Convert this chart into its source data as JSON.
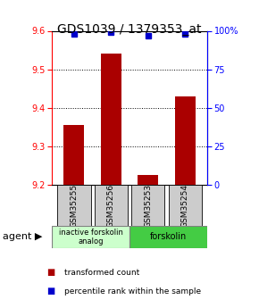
{
  "title": "GDS1039 / 1379353_at",
  "samples": [
    "GSM35255",
    "GSM35256",
    "GSM35253",
    "GSM35254"
  ],
  "bar_values": [
    9.355,
    9.54,
    9.225,
    9.43
  ],
  "percentile_values": [
    98,
    99,
    97,
    98
  ],
  "ylim_left": [
    9.2,
    9.6
  ],
  "ylim_right": [
    0,
    100
  ],
  "yticks_left": [
    9.2,
    9.3,
    9.4,
    9.5,
    9.6
  ],
  "yticks_right": [
    0,
    25,
    50,
    75,
    100
  ],
  "ytick_right_labels": [
    "0",
    "25",
    "50",
    "75",
    "100%"
  ],
  "bar_color": "#aa0000",
  "percentile_color": "#0000cc",
  "bar_bottom": 9.2,
  "group1_color": "#ccffcc",
  "group2_color": "#44cc44",
  "group1_label": "inactive forskolin\nanalog",
  "group2_label": "forskolin",
  "legend_bar_label": "transformed count",
  "legend_pct_label": "percentile rank within the sample",
  "agent_label": "agent",
  "title_fontsize": 10,
  "tick_fontsize": 7,
  "sample_fontsize": 6.5,
  "legend_fontsize": 6.5,
  "agent_fontsize": 8
}
